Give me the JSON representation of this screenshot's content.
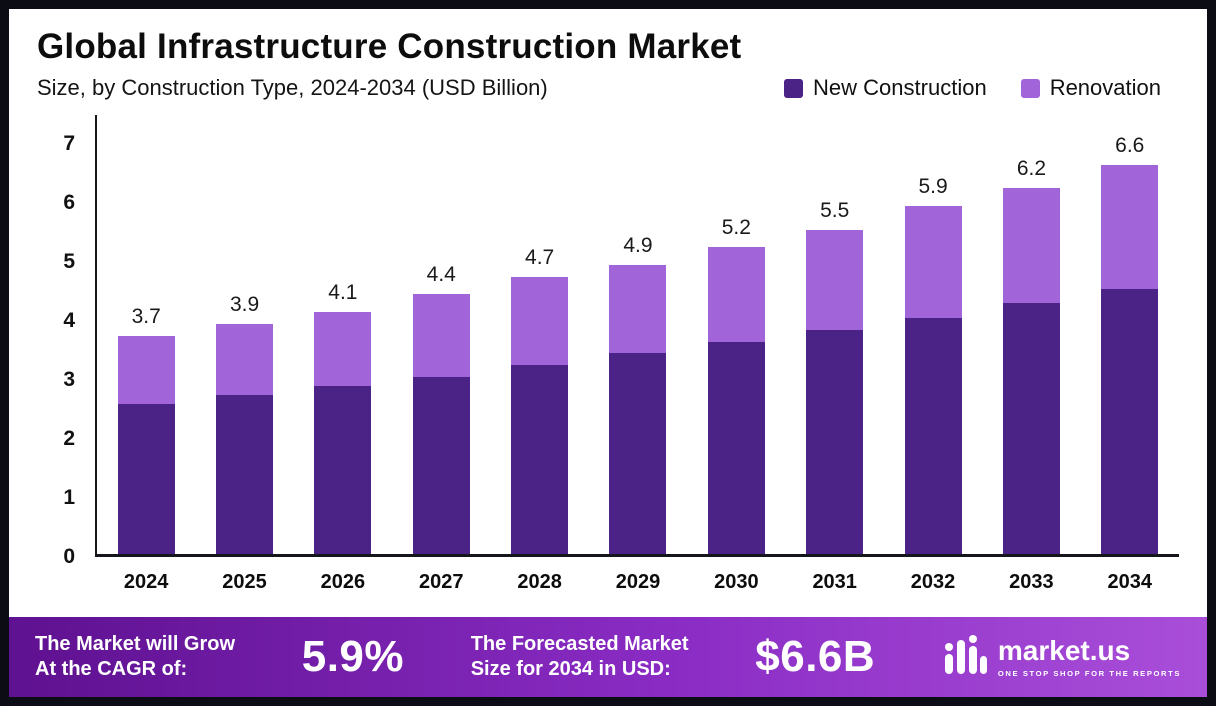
{
  "header": {
    "title": "Global Infrastructure Construction Market",
    "subtitle": "Size, by Construction Type, 2024-2034 (USD Billion)"
  },
  "legend": [
    {
      "label": "New Construction",
      "color": "#4b2286"
    },
    {
      "label": "Renovation",
      "color": "#a164d9"
    }
  ],
  "chart_data": {
    "type": "bar",
    "stacked": true,
    "title": "Global Infrastructure Construction Market",
    "subtitle": "Size, by Construction Type, 2024-2034 (USD Billion)",
    "categories": [
      "2024",
      "2025",
      "2026",
      "2027",
      "2028",
      "2029",
      "2030",
      "2031",
      "2032",
      "2033",
      "2034"
    ],
    "series": [
      {
        "name": "New Construction",
        "color": "#4b2286",
        "values": [
          2.55,
          2.7,
          2.85,
          3.0,
          3.2,
          3.4,
          3.6,
          3.8,
          4.0,
          4.25,
          4.5
        ]
      },
      {
        "name": "Renovation",
        "color": "#a164d9",
        "values": [
          1.15,
          1.2,
          1.25,
          1.4,
          1.5,
          1.5,
          1.6,
          1.7,
          1.9,
          1.95,
          2.1
        ]
      }
    ],
    "totals": [
      3.7,
      3.9,
      4.1,
      4.4,
      4.7,
      4.9,
      5.2,
      5.5,
      5.9,
      6.2,
      6.6
    ],
    "xlabel": "",
    "ylabel": "",
    "ylim": [
      0,
      7
    ],
    "yticks": [
      0,
      1,
      2,
      3,
      4,
      5,
      6,
      7
    ],
    "grid": false,
    "legend_position": "top-right"
  },
  "footer": {
    "cagr_text_line1": "The Market will Grow",
    "cagr_text_line2": "At the CAGR of:",
    "cagr_value": "5.9%",
    "forecast_text_line1": "The Forecasted Market",
    "forecast_text_line2": "Size for 2034 in USD:",
    "forecast_value": "$6.6B",
    "brand": "market.us",
    "brand_tagline": "ONE STOP SHOP FOR THE REPORTS"
  }
}
